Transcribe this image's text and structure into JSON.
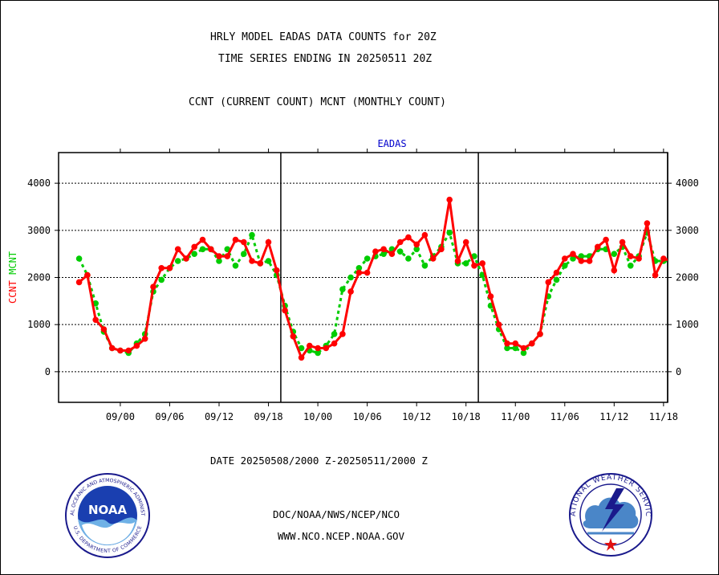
{
  "titles": {
    "line1": "HRLY MODEL EADAS DATA COUNTS for 20Z",
    "line2": "TIME SERIES ENDING IN 20250511 20Z",
    "line3": "CCNT (CURRENT COUNT) MCNT (MONTHLY COUNT)"
  },
  "date_range": "DATE 20250508/2000 Z-20250511/2000 Z",
  "footer": {
    "org_path": "DOC/NOAA/NWS/NCEP/NCO",
    "url": "WWW.NCO.NCEP.NOAA.GOV"
  },
  "logos": {
    "noaa_text": "NOAA",
    "noaa_ring": "NATIONAL OCEANIC AND ATMOSPHERIC ADMINISTRATION",
    "noaa_ring_bottom": "U.S. DEPARTMENT OF COMMERCE",
    "nws_ring": "NATIONAL WEATHER SERVICE"
  },
  "colors": {
    "ccnt": "#ff0000",
    "mcnt": "#00cc00",
    "title_blue": "#0000cc",
    "axis": "#000000"
  },
  "chart_data": {
    "type": "line",
    "title": "EADAS",
    "ylabel_parts": [
      {
        "text": "CCNT",
        "color": "#ff0000"
      },
      {
        "text": "MCNT",
        "color": "#00cc00"
      }
    ],
    "ylim": [
      -650,
      4650
    ],
    "yticks": [
      0,
      1000,
      2000,
      3000,
      4000
    ],
    "xlim": [
      -3.5,
      70.5
    ],
    "x_unit": "hour index from 20250508 17Z",
    "xticks": [
      {
        "x": 4,
        "label": "09/00"
      },
      {
        "x": 10,
        "label": "09/06"
      },
      {
        "x": 16,
        "label": "09/12"
      },
      {
        "x": 22,
        "label": "09/18"
      },
      {
        "x": 28,
        "label": "10/00"
      },
      {
        "x": 34,
        "label": "10/06"
      },
      {
        "x": 40,
        "label": "10/12"
      },
      {
        "x": 46,
        "label": "10/18"
      },
      {
        "x": 52,
        "label": "11/00"
      },
      {
        "x": 58,
        "label": "11/06"
      },
      {
        "x": 64,
        "label": "11/12"
      },
      {
        "x": 70,
        "label": "11/18"
      }
    ],
    "day_dividers": [
      23.5,
      47.5,
      71.5
    ],
    "grid": true,
    "series": [
      {
        "name": "CCNT",
        "color": "#ff0000",
        "x": [
          -1,
          0,
          1,
          2,
          3,
          4,
          5,
          6,
          7,
          8,
          9,
          10,
          11,
          12,
          13,
          14,
          15,
          16,
          17,
          18,
          19,
          20,
          21,
          22,
          23,
          24,
          25,
          26,
          27,
          28,
          29,
          30,
          31,
          32,
          33,
          34,
          35,
          36,
          37,
          38,
          39,
          40,
          41,
          42,
          43,
          44,
          45,
          46,
          47,
          48,
          49,
          50,
          51,
          52,
          53,
          54,
          55,
          56,
          57,
          58,
          59,
          60,
          61,
          62,
          63,
          64,
          65,
          66,
          67,
          68,
          69,
          70,
          71
        ],
        "values": [
          1900,
          2050,
          1100,
          900,
          500,
          450,
          450,
          550,
          700,
          1800,
          2200,
          2200,
          2600,
          2400,
          2650,
          2800,
          2600,
          2450,
          2450,
          2800,
          2750,
          2350,
          2300,
          2750,
          2150,
          1300,
          750,
          300,
          550,
          500,
          500,
          600,
          800,
          1700,
          2100,
          2100,
          2550,
          2600,
          2500,
          2750,
          2850,
          2700,
          2900,
          2400,
          2600,
          3650,
          2350,
          2750,
          2250,
          2300,
          1600,
          1000,
          600,
          600,
          500,
          600,
          800,
          1900,
          2100,
          2400,
          2500,
          2350,
          2350,
          2650,
          2800,
          2150,
          2750,
          2450,
          2400,
          3150,
          2050,
          2400,
          2350
        ]
      },
      {
        "name": "MCNT",
        "color": "#00cc00",
        "x": [
          -1,
          0,
          1,
          2,
          3,
          4,
          5,
          6,
          7,
          8,
          9,
          10,
          11,
          12,
          13,
          14,
          15,
          16,
          17,
          18,
          19,
          20,
          21,
          22,
          23,
          24,
          25,
          26,
          27,
          28,
          29,
          30,
          31,
          32,
          33,
          34,
          35,
          36,
          37,
          38,
          39,
          40,
          41,
          42,
          43,
          44,
          45,
          46,
          47,
          48,
          49,
          50,
          51,
          52,
          53,
          54,
          55,
          56,
          57,
          58,
          59,
          60,
          61,
          62,
          63,
          64,
          65,
          66,
          67,
          68,
          69,
          70,
          71
        ],
        "values": [
          2400,
          2050,
          1450,
          850,
          500,
          450,
          400,
          600,
          800,
          1700,
          1950,
          2200,
          2350,
          2400,
          2500,
          2600,
          2600,
          2350,
          2600,
          2250,
          2500,
          2900,
          2300,
          2350,
          2050,
          1400,
          850,
          500,
          450,
          400,
          550,
          800,
          1750,
          2000,
          2200,
          2400,
          2450,
          2500,
          2600,
          2550,
          2400,
          2600,
          2250,
          2450,
          2650,
          2950,
          2300,
          2300,
          2450,
          2050,
          1400,
          900,
          500,
          500,
          400,
          600,
          800,
          1600,
          1950,
          2250,
          2400,
          2450,
          2450,
          2600,
          2600,
          2500,
          2650,
          2250,
          2450,
          2950,
          2350,
          2350,
          2350
        ]
      }
    ]
  }
}
